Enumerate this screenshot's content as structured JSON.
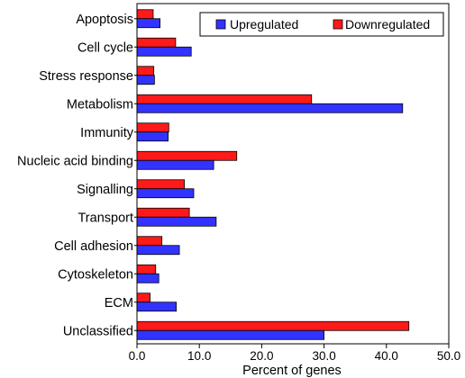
{
  "chart_data": {
    "type": "bar",
    "orientation": "horizontal",
    "categories": [
      "Apoptosis",
      "Cell cycle",
      "Stress response",
      "Metabolism",
      "Immunity",
      "Nucleic acid binding",
      "Signalling",
      "Transport",
      "Cell adhesion",
      "Cytoskeleton",
      "ECM",
      "Unclassified"
    ],
    "series": [
      {
        "name": "Upregulated",
        "color": "#3333ff",
        "values": [
          3.7,
          8.7,
          2.8,
          42.6,
          5.0,
          12.3,
          9.1,
          12.7,
          6.8,
          3.5,
          6.3,
          30.0
        ]
      },
      {
        "name": "Downregulated",
        "color": "#ff1a1a",
        "values": [
          2.6,
          6.2,
          2.7,
          28.0,
          5.1,
          16.0,
          7.6,
          8.4,
          4.0,
          3.0,
          2.1,
          43.6
        ]
      }
    ],
    "xlabel": "Percent of genes",
    "xlim": [
      0,
      50
    ],
    "xticks": [
      "0.0",
      "10.0",
      "20.0",
      "30.0",
      "40.0",
      "50.0"
    ],
    "legend_position": "top-right",
    "grid": false
  }
}
